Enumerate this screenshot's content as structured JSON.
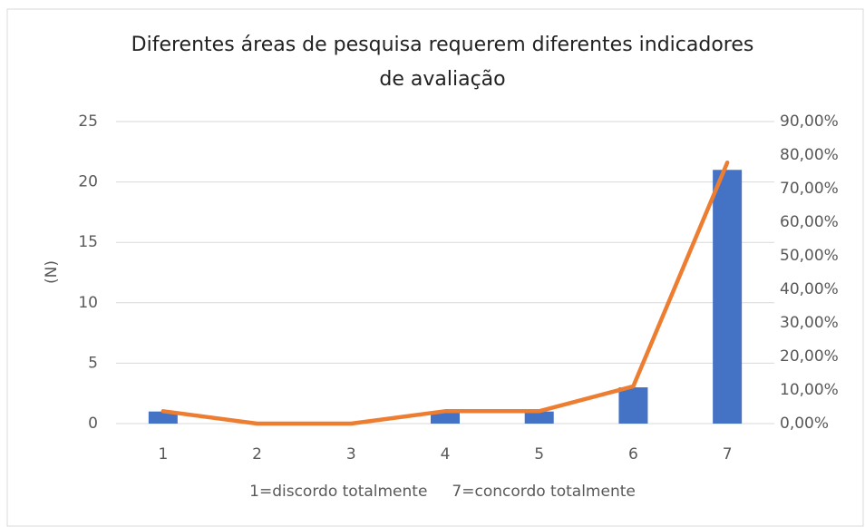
{
  "chart_data": {
    "type": "combo",
    "title": [
      "Diferentes áreas de pesquisa requerem diferentes indicadores",
      "de avaliação"
    ],
    "ylabel": "(N)",
    "xlabel": "1=discordo totalmente     7=concordo totalmente",
    "categories": [
      "1",
      "2",
      "3",
      "4",
      "5",
      "6",
      "7"
    ],
    "series": [
      {
        "type": "bar",
        "color": "#4472c4",
        "values": [
          1,
          0,
          0,
          1,
          1,
          3,
          21
        ]
      },
      {
        "type": "line",
        "axis": "y2",
        "color": "#ed7d31",
        "values": [
          3.7,
          0,
          0,
          3.7,
          3.7,
          11.11,
          77.78
        ]
      }
    ],
    "ylim": [
      0,
      25
    ],
    "yticks": [
      0,
      5,
      10,
      15,
      20,
      25
    ],
    "y2lim": [
      0,
      90
    ],
    "y2ticks": [
      {
        "value": 0,
        "label": "0,00%"
      },
      {
        "value": 10,
        "label": "10,00%"
      },
      {
        "value": 20,
        "label": "20,00%"
      },
      {
        "value": 30,
        "label": "30,00%"
      },
      {
        "value": 40,
        "label": "40,00%"
      },
      {
        "value": 50,
        "label": "50,00%"
      },
      {
        "value": 60,
        "label": "60,00%"
      },
      {
        "value": 70,
        "label": "70,00%"
      },
      {
        "value": 80,
        "label": "80,00%"
      },
      {
        "value": 90,
        "label": "90,00%"
      }
    ],
    "grid": true
  }
}
